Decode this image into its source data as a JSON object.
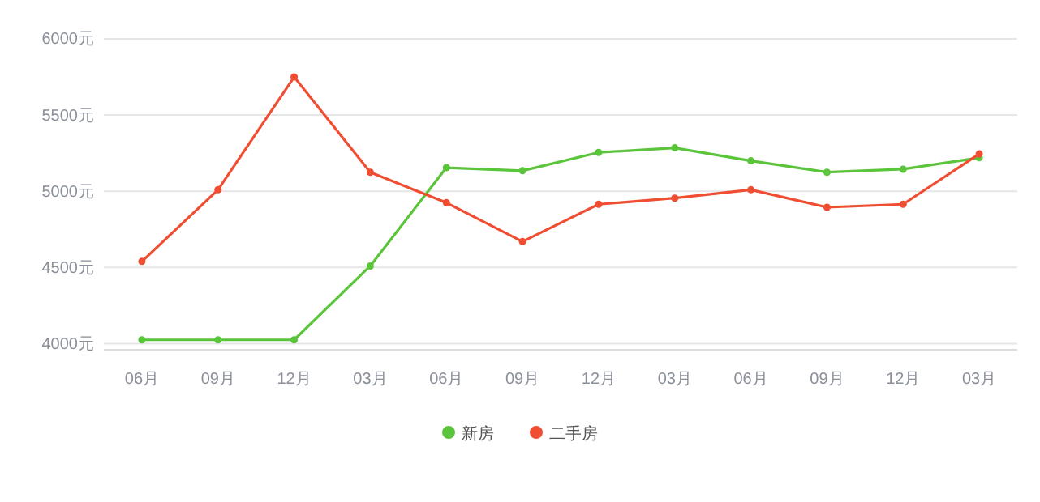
{
  "chart_data": {
    "type": "line",
    "categories": [
      "06月",
      "09月",
      "12月",
      "03月",
      "06月",
      "09月",
      "12月",
      "03月",
      "06月",
      "09月",
      "12月",
      "03月"
    ],
    "series": [
      {
        "name": "新房",
        "color": "#5ac43a",
        "values": [
          4025,
          4025,
          4025,
          4510,
          5155,
          5135,
          5255,
          5285,
          5200,
          5125,
          5145,
          5220
        ]
      },
      {
        "name": "二手房",
        "color": "#f04e33",
        "values": [
          4540,
          5010,
          5750,
          5125,
          4925,
          4670,
          4915,
          4955,
          5010,
          4895,
          4915,
          5245
        ]
      }
    ],
    "ylim": [
      3960,
      6000
    ],
    "yticks": [
      {
        "value": 4000,
        "label": "4000元"
      },
      {
        "value": 4500,
        "label": "4500元"
      },
      {
        "value": 5000,
        "label": "5000元"
      },
      {
        "value": 5500,
        "label": "5500元"
      },
      {
        "value": 6000,
        "label": "6000元"
      }
    ],
    "grid": "y",
    "legend": "bottom",
    "marker": "circle",
    "line_style": "solid"
  }
}
